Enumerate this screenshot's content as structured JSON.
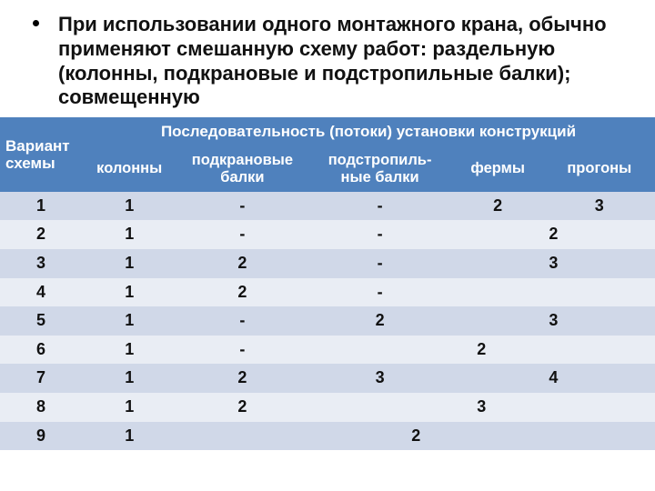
{
  "bullet": "При использовании одного монтажного крана, обычно применяют смешанную схему работ: раздельную (колонны, подкрановые и подстропильные балки); совмещенную",
  "header": {
    "variant": "Вариант схемы",
    "group": "Последовательность (потоки) установки конструкций",
    "sub": {
      "c1": "колонны",
      "c2": "подкрановые балки",
      "c3": "подстропиль-ные балки",
      "c4": "фермы",
      "c5": "прогоны"
    }
  },
  "rows": [
    {
      "v": "1",
      "cells": [
        {
          "t": "1",
          "s": 1
        },
        {
          "t": "-",
          "s": 1
        },
        {
          "t": "-",
          "s": 1
        },
        {
          "t": "2",
          "s": 1
        },
        {
          "t": "3",
          "s": 1
        }
      ]
    },
    {
      "v": "2",
      "cells": [
        {
          "t": "1",
          "s": 1
        },
        {
          "t": "-",
          "s": 1
        },
        {
          "t": "-",
          "s": 1
        },
        {
          "t": "2",
          "s": 2
        }
      ]
    },
    {
      "v": "3",
      "cells": [
        {
          "t": "1",
          "s": 1
        },
        {
          "t": "2",
          "s": 1
        },
        {
          "t": "-",
          "s": 1
        },
        {
          "t": "3",
          "s": 2
        }
      ]
    },
    {
      "v": "4",
      "cells": [
        {
          "t": "1",
          "s": 1
        },
        {
          "t": "2",
          "s": 1
        },
        {
          "t": "-",
          "s": 1
        },
        {
          "t": "",
          "s": 2
        }
      ]
    },
    {
      "v": "5",
      "cells": [
        {
          "t": "1",
          "s": 1
        },
        {
          "t": "-",
          "s": 1
        },
        {
          "t": "2",
          "s": 1
        },
        {
          "t": "3",
          "s": 2
        }
      ]
    },
    {
      "v": "6",
      "cells": [
        {
          "t": "1",
          "s": 1
        },
        {
          "t": "-",
          "s": 1
        },
        {
          "t": "2",
          "s": 3
        }
      ]
    },
    {
      "v": "7",
      "cells": [
        {
          "t": "1",
          "s": 1
        },
        {
          "t": "2",
          "s": 1
        },
        {
          "t": "3",
          "s": 1
        },
        {
          "t": "4",
          "s": 2
        }
      ]
    },
    {
      "v": "8",
      "cells": [
        {
          "t": "1",
          "s": 1
        },
        {
          "t": "2",
          "s": 1
        },
        {
          "t": "3",
          "s": 3
        }
      ]
    },
    {
      "v": "9",
      "cells": [
        {
          "t": "1",
          "s": 1
        },
        {
          "t": "2",
          "s": 4
        }
      ]
    }
  ],
  "colors": {
    "header_bg": "#4f81bd",
    "header_fg": "#ffffff",
    "row_odd_bg": "#d0d8e8",
    "row_even_bg": "#e9edf4",
    "text": "#111111",
    "page_bg": "#ffffff"
  },
  "typography": {
    "bullet_fontsize_pt": 16,
    "header_fontsize_pt": 13,
    "cell_fontsize_pt": 13,
    "weight": "bold"
  },
  "table_meta": {
    "type": "table",
    "col_widths_pct": [
      12.5,
      14.5,
      20,
      22,
      14,
      17
    ]
  }
}
